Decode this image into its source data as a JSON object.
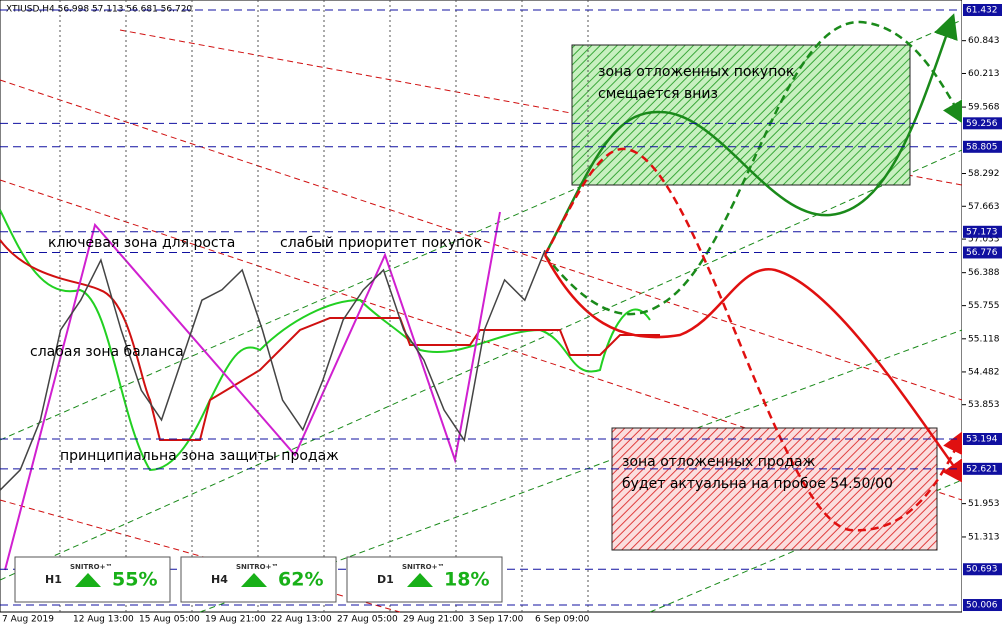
{
  "header": "XTIUSD,H4  56.998 57.113 56.681 56.720",
  "chart_data": {
    "type": "line",
    "color": "#444444",
    "values": [
      52.21,
      52.6,
      53.56,
      55.29,
      55.86,
      56.63,
      55.29,
      54.13,
      53.56,
      54.71,
      55.86,
      56.06,
      56.44,
      55.29,
      53.94,
      53.37,
      54.33,
      55.48,
      56.06,
      56.44,
      55.29,
      54.71,
      53.75,
      53.17,
      55.29,
      56.25,
      55.86,
      56.82
    ],
    "ylim": [
      49.872,
      61.624
    ],
    "yticks": [
      60.843,
      60.213,
      59.568,
      58.292,
      57.663,
      57.033,
      56.388,
      55.755,
      55.118,
      54.482,
      53.853,
      51.953,
      51.313
    ],
    "levels": [
      61.432,
      59.256,
      58.805,
      57.173,
      56.776,
      53.194,
      52.621,
      50.693,
      50.006
    ],
    "level_color": "#1010a0",
    "time_labels": [
      "7 Aug 2019",
      "12 Aug 13:00",
      "15 Aug 05:00",
      "19 Aug 21:00",
      "22 Aug 13:00",
      "27 Aug 05:00",
      "29 Aug 21:00",
      "3 Sep 17:00",
      "6 Sep 09:00"
    ],
    "grid": true,
    "annotations": [
      "ключевая зона для роста",
      "слабый приоритет покупок",
      "слабая зона баланса",
      "принципиальна зона защиты продаж"
    ],
    "buy_zone": [
      "зона отложенных покупок",
      "смещается вниз"
    ],
    "sell_zone": [
      "зона отложенных продаж",
      "будет актуальна на пробое 54.50/00"
    ]
  },
  "badges": [
    {
      "timeframe": "H1",
      "brand": "SNITRO+™",
      "percent": "55%"
    },
    {
      "timeframe": "H4",
      "brand": "SNITRO+™",
      "percent": "62%"
    },
    {
      "timeframe": "D1",
      "brand": "SNITRO+™",
      "percent": "18%"
    }
  ]
}
